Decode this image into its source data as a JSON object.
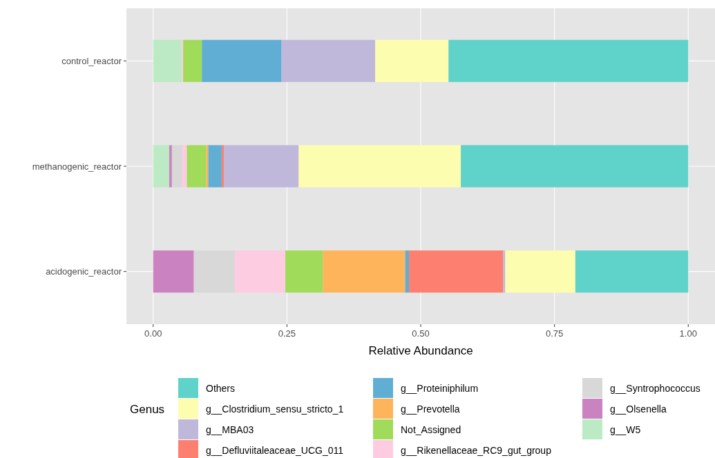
{
  "chart_data": {
    "type": "bar",
    "orientation": "horizontal",
    "stacked": true,
    "xlabel": "Relative Abundance",
    "legend_title": "Genus",
    "legend": "bottom",
    "grid": true,
    "categories": [
      "control_reactor",
      "methanogenic_reactor",
      "acidogenic_reactor"
    ],
    "xlim": [
      -0.05,
      1.05
    ],
    "xticks": [
      {
        "value": 0,
        "label": "0.00"
      },
      {
        "value": 0.25,
        "label": "0.25"
      },
      {
        "value": 0.5,
        "label": "0.50"
      },
      {
        "value": 0.75,
        "label": "0.75"
      },
      {
        "value": 1,
        "label": "1.00"
      }
    ],
    "series": [
      {
        "name": "g__W5",
        "color": "#bbeac5",
        "values": [
          0.053,
          0.03,
          0
        ]
      },
      {
        "name": "g__Olsenella",
        "color": "#cb82c0",
        "values": [
          0,
          0.005,
          0.076
        ]
      },
      {
        "name": "g__Syntrophococcus",
        "color": "#d8d8d8",
        "values": [
          0,
          0.019,
          0.077
        ]
      },
      {
        "name": "g__Rikenellaceae_RC9_gut_group",
        "color": "#fecce0",
        "values": [
          0.003,
          0.009,
          0.094
        ]
      },
      {
        "name": "Not_Assigned",
        "color": "#a0dc5a",
        "values": [
          0.035,
          0.036,
          0.07
        ]
      },
      {
        "name": "g__Prevotella",
        "color": "#feb45a",
        "values": [
          0,
          0.004,
          0.154
        ]
      },
      {
        "name": "g__Proteiniphilum",
        "color": "#61aed4",
        "values": [
          0.149,
          0.025,
          0.007
        ]
      },
      {
        "name": "g__Defluviitaleaceae_UCG_011",
        "color": "#fd7f6f",
        "values": [
          0,
          0.004,
          0.176
        ]
      },
      {
        "name": "g__MBA03",
        "color": "#c0b8da",
        "values": [
          0.175,
          0.14,
          0.004
        ]
      },
      {
        "name": "g__Clostridium_sensu_stricto_1",
        "color": "#fdfdaf",
        "values": [
          0.137,
          0.303,
          0.131
        ]
      },
      {
        "name": "Others",
        "color": "#5fd3c9",
        "values": [
          0.448,
          0.425,
          0.211
        ]
      }
    ]
  }
}
